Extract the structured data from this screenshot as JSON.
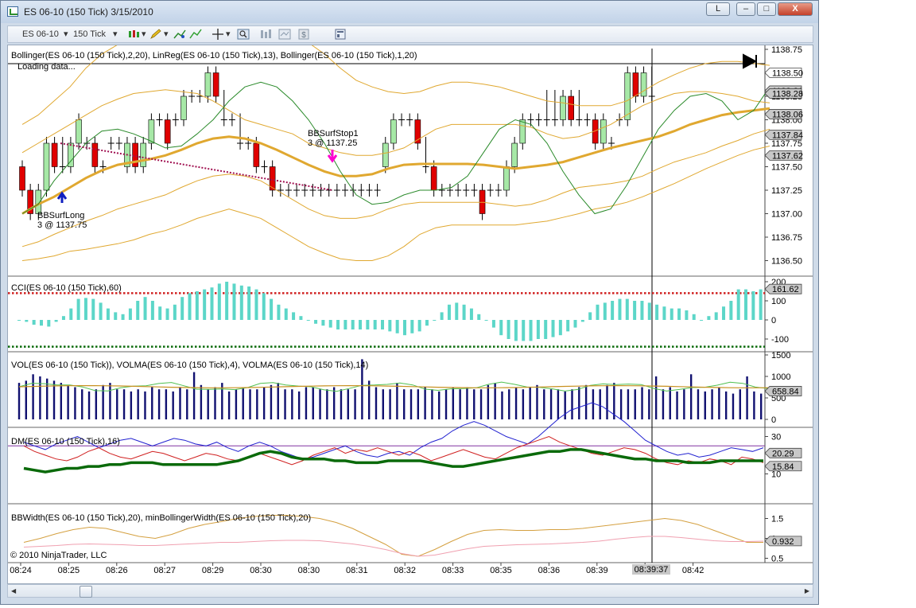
{
  "window": {
    "title": "ES 06-10 (150 Tick)  3/15/2010",
    "buttons": {
      "link": "L",
      "minimize": "–",
      "maximize": "□",
      "close": "X"
    }
  },
  "toolbar": {
    "instrument": "ES 06-10",
    "period": "150 Tick"
  },
  "price_panel": {
    "label": "Bollinger(ES 06-10 (150 Tick),2,20), LinReg(ES 06-10 (150 Tick),13), Bollinger(ES 06-10 (150 Tick),1,20)",
    "status": "Loading data...",
    "ticks": [
      "1138.75",
      "1138.50",
      "1138.25",
      "1138.00",
      "1137.75",
      "1137.50",
      "1137.25",
      "1137.00",
      "1136.75",
      "1136.50"
    ],
    "price_markers": [
      "1138.50",
      "1138.31",
      "1138.28",
      "1138.06",
      "1137.84",
      "1137.62"
    ],
    "signal_long_name": "BBSurfLong",
    "signal_long_detail": "3 @ 1137.75",
    "signal_stop_name": "BBSurfStop1",
    "signal_stop_detail": "3 @ 1137.25"
  },
  "cci_panel": {
    "label": "CCI(ES 06-10 (150 Tick),60)",
    "ticks": [
      "200",
      "100",
      "0",
      "-100"
    ],
    "marker": "161.62"
  },
  "vol_panel": {
    "label": "VOL(ES 06-10 (150 Tick)), VOLMA(ES 06-10 (150 Tick),4), VOLMA(ES 06-10 (150 Tick),14)",
    "ticks": [
      "1500",
      "1000",
      "500",
      "0"
    ],
    "marker": "658.84"
  },
  "dm_panel": {
    "label": "DM(ES 06-10 (150 Tick),16)",
    "ticks": [
      "30",
      "10"
    ],
    "markers": [
      "20.29",
      "15.84"
    ]
  },
  "bbw_panel": {
    "label": "BBWidth(ES 06-10 (150 Tick),20), minBollingerWidth(ES 06-10 (150 Tick),20)",
    "ticks": [
      "1.5",
      "1",
      "0.5"
    ],
    "marker": "0.932",
    "copyright": "© 2010 NinjaTrader, LLC"
  },
  "time_axis": {
    "labels": [
      "08:24",
      "08:25",
      "08:26",
      "08:27",
      "08:29",
      "08:30",
      "08:30",
      "08:31",
      "08:32",
      "08:33",
      "08:35",
      "08:36",
      "08:39",
      "08:40",
      "08:42"
    ],
    "cursor_time": "08:39:37"
  },
  "colors": {
    "up_candle": "#a6e8a6",
    "down_candle": "#e00000",
    "bollinger": "#e0a830",
    "linreg": "#2a8a2a",
    "cci": "#5cd6c8",
    "volume": "#101070",
    "dm_plus": "#2020d0",
    "dm_minus": "#d02020",
    "adx": "#0a6a0a",
    "bbwidth": "#d4a040",
    "min_bbwidth": "#f0a0b0"
  }
}
